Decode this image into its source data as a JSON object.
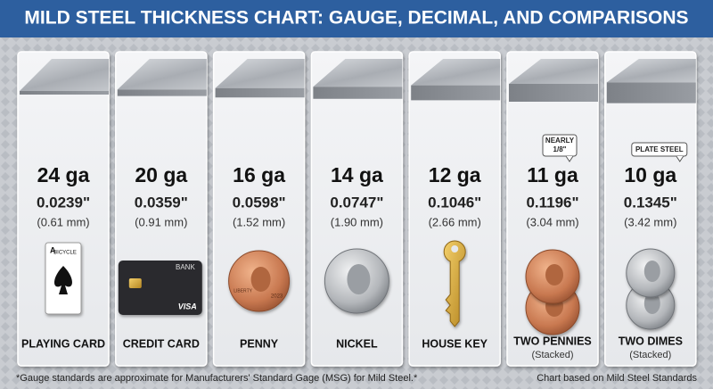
{
  "header": {
    "title": "MILD STEEL THICKNESS CHART: GAUGE, DECIMAL, AND COMPARISONS"
  },
  "columns": [
    {
      "gauge": "24 ga",
      "decimal": "0.0239\"",
      "metric": "(0.61 mm)",
      "item": "PLAYING CARD",
      "icon_text": [
        "A",
        "BICYCLE"
      ]
    },
    {
      "gauge": "20 ga",
      "decimal": "0.0359\"",
      "metric": "(0.91 mm)",
      "item": "CREDIT CARD",
      "icon_text": [
        "BANK",
        "VISA"
      ]
    },
    {
      "gauge": "16 ga",
      "decimal": "0.0598\"",
      "metric": "(1.52 mm)",
      "item": "PENNY",
      "icon_text": [
        "LIBERTY",
        "2023"
      ]
    },
    {
      "gauge": "14 ga",
      "decimal": "0.0747\"",
      "metric": "(1.90 mm)",
      "item": "NICKEL"
    },
    {
      "gauge": "12 ga",
      "decimal": "0.1046\"",
      "metric": "(2.66 mm)",
      "item": "HOUSE KEY"
    },
    {
      "gauge": "11 ga",
      "decimal": "0.1196\"",
      "metric": "(3.04 mm)",
      "item": "TWO PENNIES",
      "sublabel": "(Stacked)",
      "badge": [
        "NEARLY",
        "1/8\""
      ]
    },
    {
      "gauge": "10 ga",
      "decimal": "0.1345\"",
      "metric": "(3.42 mm)",
      "item": "TWO DIMES",
      "sublabel": "(Stacked)",
      "badge": [
        "PLATE STEEL"
      ]
    }
  ],
  "footer": {
    "note": "*Gauge standards are approximate for Manufacturers' Standard Gage (MSG) for Mild Steel.*",
    "source": "Chart based on Mild Steel Standards"
  }
}
